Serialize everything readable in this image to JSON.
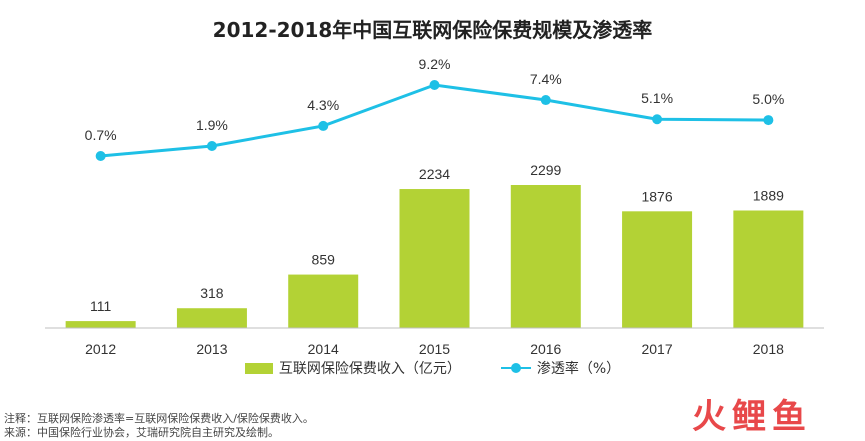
{
  "chart_data": {
    "type": "bar+line",
    "title": "2012-2018年中国互联网保险保费规模及渗透率",
    "categories": [
      "2012",
      "2013",
      "2014",
      "2015",
      "2016",
      "2017",
      "2018"
    ],
    "series": [
      {
        "name": "互联网保险保费收入（亿元）",
        "type": "bar",
        "values": [
          111,
          318,
          859,
          2234,
          2299,
          1876,
          1889
        ],
        "labels": [
          "111",
          "318",
          "859",
          "2234",
          "2299",
          "1876",
          "1889"
        ]
      },
      {
        "name": "渗透率（%）",
        "type": "line",
        "values": [
          0.7,
          1.9,
          4.3,
          9.2,
          7.4,
          5.1,
          5.0
        ],
        "labels": [
          "0.7%",
          "1.9%",
          "4.3%",
          "9.2%",
          "7.4%",
          "5.1%",
          "5.0%"
        ]
      }
    ],
    "colors": {
      "bar": "#b3d235",
      "line": "#1ec0e6",
      "axis": "#bfbfbf"
    },
    "grid": false,
    "legend_position": "bottom"
  },
  "footnotes": [
    "注释：互联网保险渗透率=互联网保险保费收入/保险保费收入。",
    "来源：中国保险行业协会，艾瑞研究院自主研究及绘制。"
  ],
  "watermark": {
    "text": "火鲤鱼"
  }
}
